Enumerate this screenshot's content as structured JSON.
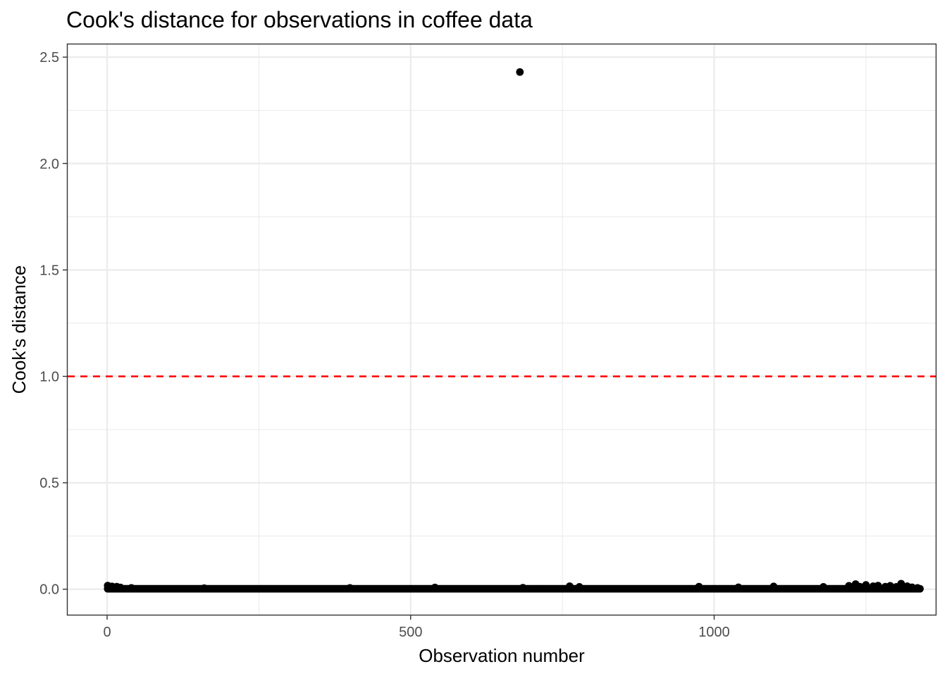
{
  "chart_data": {
    "type": "scatter",
    "title": "Cook's distance for observations in coffee data",
    "xlabel": "Observation number",
    "ylabel": "Cook's distance",
    "xlim": [
      -65,
      1365
    ],
    "ylim": [
      -0.12,
      2.56
    ],
    "x_ticks": [
      0,
      500,
      1000
    ],
    "x_tick_labels": [
      "0",
      "500",
      "1000"
    ],
    "y_ticks": [
      0.0,
      0.5,
      1.0,
      1.5,
      2.0,
      2.5
    ],
    "y_tick_labels": [
      "0.0",
      "0.5",
      "1.0",
      "1.5",
      "2.0",
      "2.5"
    ],
    "grid": true,
    "n_observations": 1339,
    "baseline_value": 0.002,
    "reference_line": {
      "y": 1.0,
      "style": "dashed",
      "color": "#ff0000"
    },
    "points": [
      {
        "x": 1,
        "y": 0.017
      },
      {
        "x": 4,
        "y": 0.011
      },
      {
        "x": 8,
        "y": 0.013
      },
      {
        "x": 12,
        "y": 0.009
      },
      {
        "x": 16,
        "y": 0.012
      },
      {
        "x": 22,
        "y": 0.008
      },
      {
        "x": 40,
        "y": 0.006
      },
      {
        "x": 160,
        "y": 0.005
      },
      {
        "x": 400,
        "y": 0.006
      },
      {
        "x": 540,
        "y": 0.008
      },
      {
        "x": 680,
        "y": 2.43
      },
      {
        "x": 685,
        "y": 0.007
      },
      {
        "x": 762,
        "y": 0.014
      },
      {
        "x": 778,
        "y": 0.011
      },
      {
        "x": 975,
        "y": 0.012
      },
      {
        "x": 1040,
        "y": 0.009
      },
      {
        "x": 1098,
        "y": 0.013
      },
      {
        "x": 1180,
        "y": 0.011
      },
      {
        "x": 1222,
        "y": 0.016
      },
      {
        "x": 1233,
        "y": 0.024
      },
      {
        "x": 1240,
        "y": 0.012
      },
      {
        "x": 1250,
        "y": 0.02
      },
      {
        "x": 1262,
        "y": 0.014
      },
      {
        "x": 1270,
        "y": 0.017
      },
      {
        "x": 1282,
        "y": 0.012
      },
      {
        "x": 1290,
        "y": 0.016
      },
      {
        "x": 1300,
        "y": 0.011
      },
      {
        "x": 1308,
        "y": 0.026
      },
      {
        "x": 1318,
        "y": 0.014
      },
      {
        "x": 1326,
        "y": 0.009
      },
      {
        "x": 1335,
        "y": 0.006
      }
    ],
    "colors": {
      "points": "#000000",
      "reference_line": "#ff0000",
      "panel_border": "#333333",
      "grid": "#ebebeb"
    }
  }
}
